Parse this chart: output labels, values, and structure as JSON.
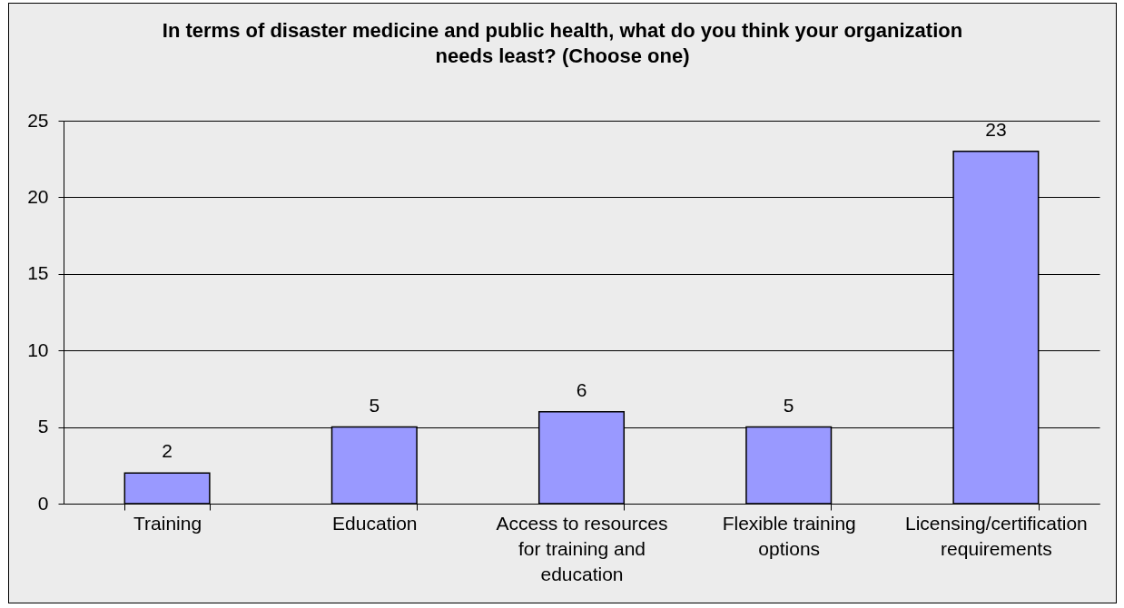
{
  "chart_data": {
    "type": "bar",
    "title": "In terms of disaster medicine and public health, what do you think your organization needs least? (Choose one)",
    "categories": [
      "Training",
      "Education",
      "Access to resources for training and education",
      "Flexible training options",
      "Licensing/certification requirements"
    ],
    "values": [
      2,
      5,
      6,
      5,
      23
    ],
    "color": "#9999ff",
    "ylim": [
      0,
      25
    ],
    "yticks": [
      0,
      5,
      10,
      15,
      20,
      25
    ],
    "grid": "y",
    "data_labels": true
  }
}
